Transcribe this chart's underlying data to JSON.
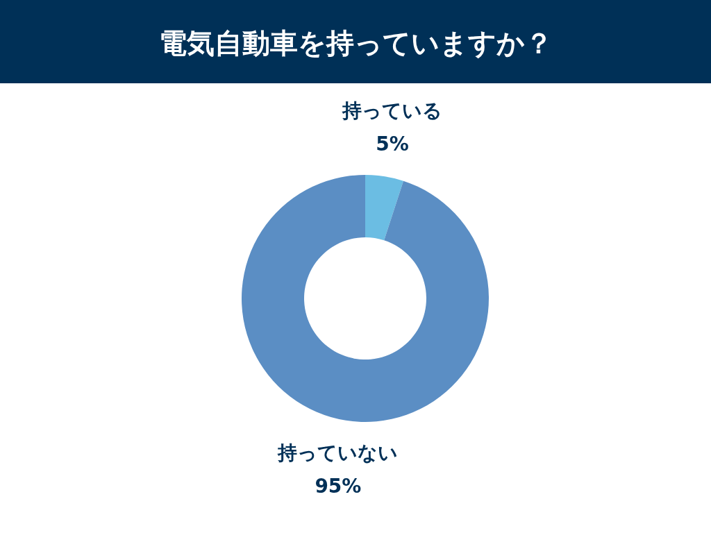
{
  "chart_data": {
    "type": "donut",
    "title": "電気自動車を持っていますか？",
    "categories": [
      "持っている",
      "持っていない"
    ],
    "values": [
      5,
      95
    ],
    "colors": [
      "#6bbde3",
      "#5b8ec4"
    ],
    "value_labels": [
      "5%",
      "95%"
    ]
  }
}
